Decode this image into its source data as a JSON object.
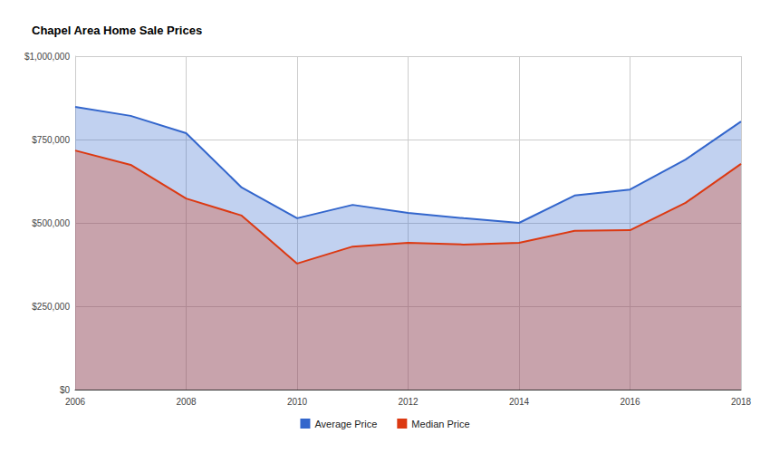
{
  "chart_data": {
    "type": "area",
    "title": "Chapel Area Home Sale Prices",
    "x": [
      2006,
      2007,
      2008,
      2009,
      2010,
      2011,
      2012,
      2013,
      2014,
      2015,
      2016,
      2017,
      2018
    ],
    "series": [
      {
        "name": "Average Price",
        "color": "#3366cc",
        "values": [
          848000,
          821000,
          769000,
          606000,
          514000,
          554000,
          530000,
          514000,
          500000,
          582000,
          600000,
          690000,
          804000
        ]
      },
      {
        "name": "Median Price",
        "color": "#dc3912",
        "values": [
          717000,
          674000,
          573000,
          522000,
          378000,
          429000,
          440000,
          435000,
          440000,
          476000,
          478000,
          560000,
          677000
        ]
      }
    ],
    "xlim": [
      2006,
      2018
    ],
    "xticks": [
      2006,
      2008,
      2010,
      2012,
      2014,
      2016,
      2018
    ],
    "ylim": [
      0,
      1000000
    ],
    "yticks": [
      {
        "value": 0,
        "label": "$0"
      },
      {
        "value": 250000,
        "label": "$250,000"
      },
      {
        "value": 500000,
        "label": "$500,000"
      },
      {
        "value": 750000,
        "label": "$750,000"
      },
      {
        "value": 1000000,
        "label": "$1,000,000"
      }
    ],
    "grid": true,
    "legend": "bottom"
  }
}
